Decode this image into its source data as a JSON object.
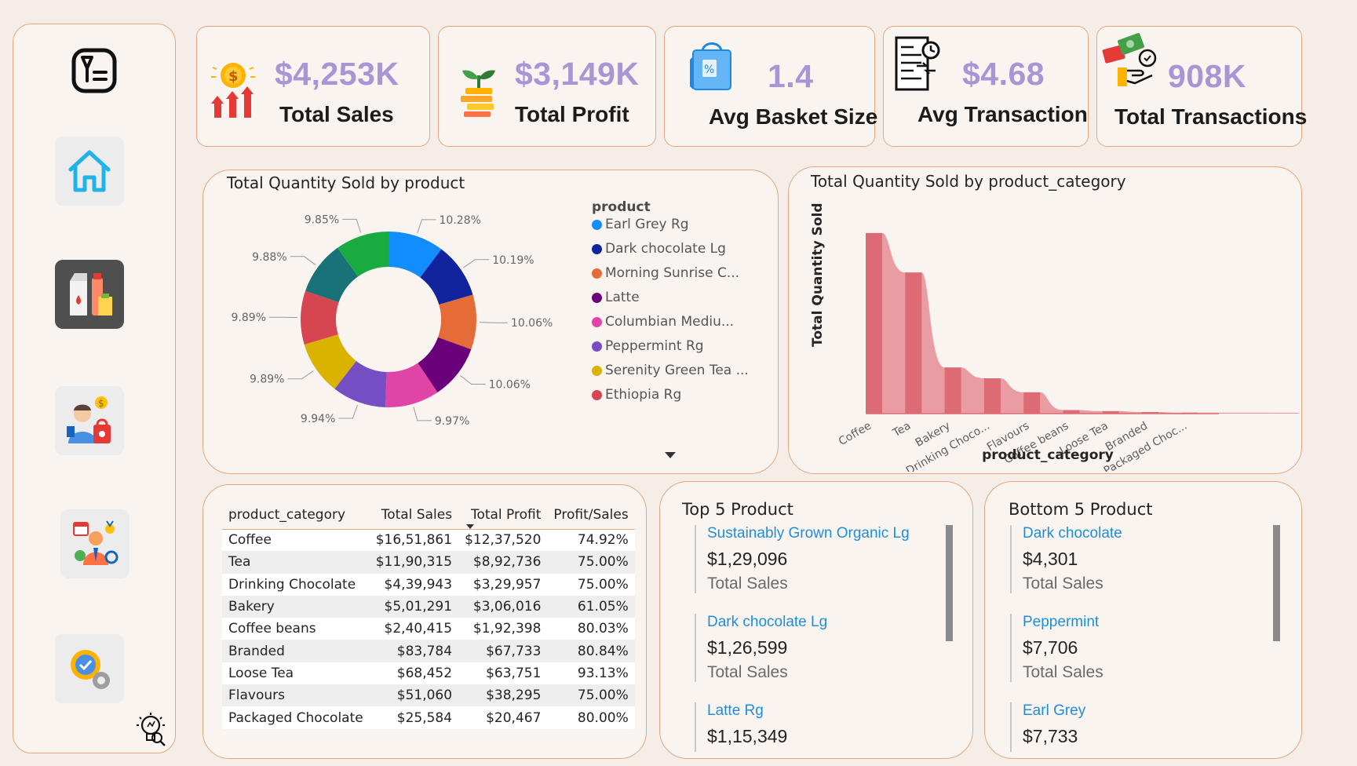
{
  "kpis": [
    {
      "value": "$4,253K",
      "label": "Total Sales",
      "icon": "coin-growth-icon"
    },
    {
      "value": "$3,149K",
      "label": "Total Profit",
      "icon": "money-plant-icon"
    },
    {
      "value": "1.4",
      "label": "Avg Basket Size",
      "icon": "shopping-bag-icon"
    },
    {
      "value": "$4.68",
      "label": "Avg Transaction",
      "icon": "receipt-icon"
    },
    {
      "value": "908K",
      "label": "Total Transactions",
      "icon": "cash-hand-icon"
    }
  ],
  "sidebar": {
    "items": [
      {
        "name": "app-logo-icon"
      },
      {
        "name": "home-icon"
      },
      {
        "name": "products-icon"
      },
      {
        "name": "customer-icon"
      },
      {
        "name": "staff-icon"
      },
      {
        "name": "settings-icon"
      },
      {
        "name": "insights-bulb-icon"
      }
    ]
  },
  "donut": {
    "title": "Total Quantity Sold by product",
    "legend_title": "product",
    "legend": [
      {
        "label": "Earl Grey Rg",
        "color": "#118dff"
      },
      {
        "label": "Dark chocolate Lg",
        "color": "#12239e"
      },
      {
        "label": "Morning Sunrise C...",
        "color": "#e66c37"
      },
      {
        "label": "Latte",
        "color": "#6b007b"
      },
      {
        "label": "Columbian Mediu...",
        "color": "#e044a7"
      },
      {
        "label": "Peppermint Rg",
        "color": "#744ec2"
      },
      {
        "label": "Serenity Green Tea ...",
        "color": "#d9b300"
      },
      {
        "label": "Ethiopia Rg",
        "color": "#d64550"
      }
    ]
  },
  "area": {
    "title": "Total Quantity Sold by product_category",
    "xlabel": "product_category",
    "ylabel": "Total Quantity Sold"
  },
  "chart_data": [
    {
      "type": "pie",
      "title": "Total Quantity Sold by product",
      "legend_title": "product",
      "legend_position": "right",
      "slices": [
        {
          "label": "Earl Grey Rg",
          "pct": "10.28%",
          "value": 10.28,
          "color": "#118dff"
        },
        {
          "label": "Dark chocolate Lg",
          "pct": "10.19%",
          "value": 10.19,
          "color": "#12239e"
        },
        {
          "label": "Morning Sunrise C...",
          "pct": "10.06%",
          "value": 10.06,
          "color": "#e66c37"
        },
        {
          "label": "Latte",
          "pct": "10.06%",
          "value": 10.06,
          "color": "#6b007b"
        },
        {
          "label": "Columbian Mediu...",
          "pct": "9.97%",
          "value": 9.97,
          "color": "#e044a7"
        },
        {
          "label": "Peppermint Rg",
          "pct": "9.94%",
          "value": 9.94,
          "color": "#744ec2"
        },
        {
          "label": "Serenity Green Tea ...",
          "pct": "9.89%",
          "value": 9.89,
          "color": "#d9b300"
        },
        {
          "label": "Ethiopia Rg",
          "pct": "9.89%",
          "value": 9.89,
          "color": "#d64550"
        },
        {
          "label": "",
          "pct": "9.88%",
          "value": 9.88,
          "color": "#197278"
        },
        {
          "label": "",
          "pct": "9.85%",
          "value": 9.85,
          "color": "#1aab40"
        }
      ]
    },
    {
      "type": "area",
      "title": "Total Quantity Sold by product_category",
      "xlabel": "product_category",
      "ylabel": "Total Quantity Sold",
      "categories": [
        "Coffee",
        "Tea",
        "Bakery",
        "Drinking Choco...",
        "Flavours",
        "Coffee beans",
        "Loose Tea",
        "Branded",
        "Packaged Choc..."
      ],
      "values": [
        89250,
        69737,
        22796,
        17457,
        10511,
        1753,
        1210,
        776,
        487
      ],
      "ylim": [
        0,
        90000
      ]
    }
  ],
  "table": {
    "columns": [
      "product_category",
      "Total Sales",
      "Total Profit",
      "Profit/Sales"
    ],
    "rows": [
      [
        "Coffee",
        "$16,51,861",
        "$12,37,520",
        "74.92%"
      ],
      [
        "Tea",
        "$11,90,315",
        "$8,92,736",
        "75.00%"
      ],
      [
        "Drinking Chocolate",
        "$4,39,943",
        "$3,29,957",
        "75.00%"
      ],
      [
        "Bakery",
        "$5,01,291",
        "$3,06,016",
        "61.05%"
      ],
      [
        "Coffee beans",
        "$2,40,415",
        "$1,92,398",
        "80.03%"
      ],
      [
        "Branded",
        "$83,784",
        "$67,733",
        "80.84%"
      ],
      [
        "Loose Tea",
        "$68,452",
        "$63,751",
        "93.13%"
      ],
      [
        "Flavours",
        "$51,060",
        "$38,295",
        "75.00%"
      ],
      [
        "Packaged Chocolate",
        "$25,584",
        "$20,467",
        "80.00%"
      ]
    ]
  },
  "top5": {
    "title": "Top 5 Product",
    "items": [
      {
        "name": "Sustainably Grown Organic Lg",
        "value": "$1,29,096",
        "caption": "Total Sales"
      },
      {
        "name": "Dark chocolate Lg",
        "value": "$1,26,599",
        "caption": "Total Sales"
      },
      {
        "name": "Latte Rg",
        "value": "$1,15,349",
        "caption": ""
      }
    ]
  },
  "bottom5": {
    "title": "Bottom 5 Product",
    "items": [
      {
        "name": "Dark chocolate",
        "value": "$4,301",
        "caption": "Total Sales"
      },
      {
        "name": "Peppermint",
        "value": "$7,706",
        "caption": "Total Sales"
      },
      {
        "name": "Earl Grey",
        "value": "$7,733",
        "caption": ""
      }
    ]
  }
}
